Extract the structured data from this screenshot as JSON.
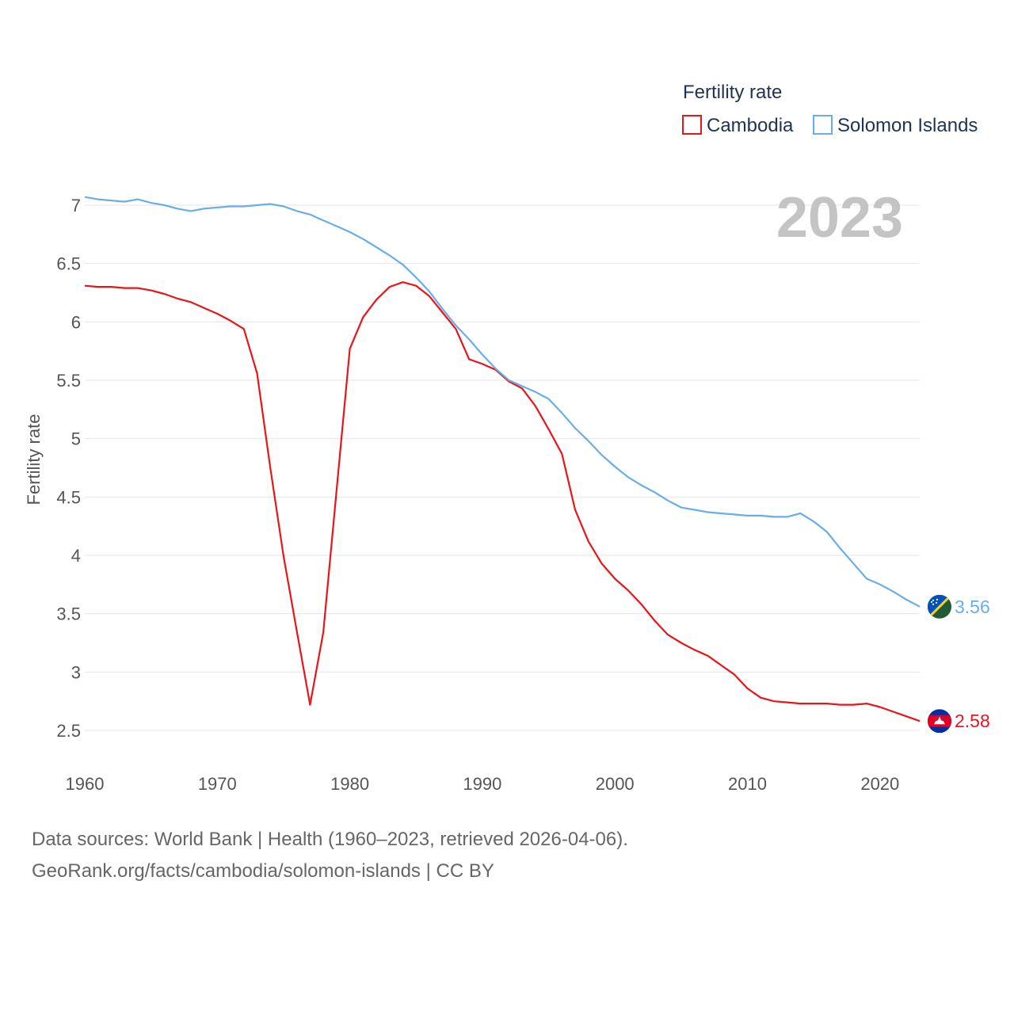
{
  "chart_data": {
    "type": "line",
    "title": "Fertility rate",
    "ylabel": "Fertility rate",
    "xlabel": "",
    "current_year": "2023",
    "xlim": [
      1960,
      2023
    ],
    "ylim": [
      2.3,
      7.1
    ],
    "x_ticks": [
      1960,
      1970,
      1980,
      1990,
      2000,
      2010,
      2020
    ],
    "y_ticks": [
      2.5,
      3,
      3.5,
      4,
      4.5,
      5,
      5.5,
      6,
      6.5,
      7
    ],
    "grid": true,
    "legend_position": "top-right",
    "x": [
      1960,
      1961,
      1962,
      1963,
      1964,
      1965,
      1966,
      1967,
      1968,
      1969,
      1970,
      1971,
      1972,
      1973,
      1974,
      1975,
      1976,
      1977,
      1978,
      1979,
      1980,
      1981,
      1982,
      1983,
      1984,
      1985,
      1986,
      1987,
      1988,
      1989,
      1990,
      1991,
      1992,
      1993,
      1994,
      1995,
      1996,
      1997,
      1998,
      1999,
      2000,
      2001,
      2002,
      2003,
      2004,
      2005,
      2006,
      2007,
      2008,
      2009,
      2010,
      2011,
      2012,
      2013,
      2014,
      2015,
      2016,
      2017,
      2018,
      2019,
      2020,
      2021,
      2022,
      2023
    ],
    "series": [
      {
        "name": "Cambodia",
        "color": "#e8151b",
        "end_label": "2.58",
        "flag": "cambodia-flag-icon",
        "values": [
          6.31,
          6.3,
          6.3,
          6.29,
          6.29,
          6.27,
          6.24,
          6.2,
          6.17,
          6.12,
          6.07,
          6.01,
          5.94,
          5.56,
          4.75,
          3.99,
          3.35,
          2.72,
          3.34,
          4.56,
          5.77,
          6.04,
          6.19,
          6.3,
          6.34,
          6.31,
          6.22,
          6.08,
          5.94,
          5.68,
          5.64,
          5.59,
          5.49,
          5.43,
          5.28,
          5.08,
          4.87,
          4.39,
          4.12,
          3.93,
          3.8,
          3.7,
          3.58,
          3.44,
          3.32,
          3.25,
          3.19,
          3.14,
          3.06,
          2.98,
          2.86,
          2.78,
          2.75,
          2.74,
          2.73,
          2.73,
          2.73,
          2.72,
          2.72,
          2.73,
          2.7,
          2.66,
          2.62,
          2.58
        ]
      },
      {
        "name": "Solomon Islands",
        "color": "#6aaee8",
        "end_label": "3.56",
        "flag": "solomon-islands-flag-icon",
        "values": [
          7.07,
          7.05,
          7.04,
          7.03,
          7.05,
          7.02,
          7.0,
          6.97,
          6.95,
          6.97,
          6.98,
          6.99,
          6.99,
          7.0,
          7.01,
          6.99,
          6.95,
          6.92,
          6.87,
          6.82,
          6.77,
          6.71,
          6.64,
          6.57,
          6.49,
          6.38,
          6.26,
          6.11,
          5.97,
          5.85,
          5.72,
          5.6,
          5.5,
          5.45,
          5.4,
          5.34,
          5.22,
          5.09,
          4.98,
          4.86,
          4.76,
          4.67,
          4.6,
          4.54,
          4.47,
          4.41,
          4.39,
          4.37,
          4.36,
          4.35,
          4.34,
          4.34,
          4.33,
          4.33,
          4.36,
          4.29,
          4.2,
          4.06,
          3.93,
          3.8,
          3.75,
          3.69,
          3.62,
          3.56
        ]
      }
    ]
  },
  "sources": {
    "line1": "Data sources: World Bank | Health (1960–2023, retrieved 2026-04-06).",
    "line2": "GeoRank.org/facts/cambodia/solomon-islands | CC BY"
  }
}
